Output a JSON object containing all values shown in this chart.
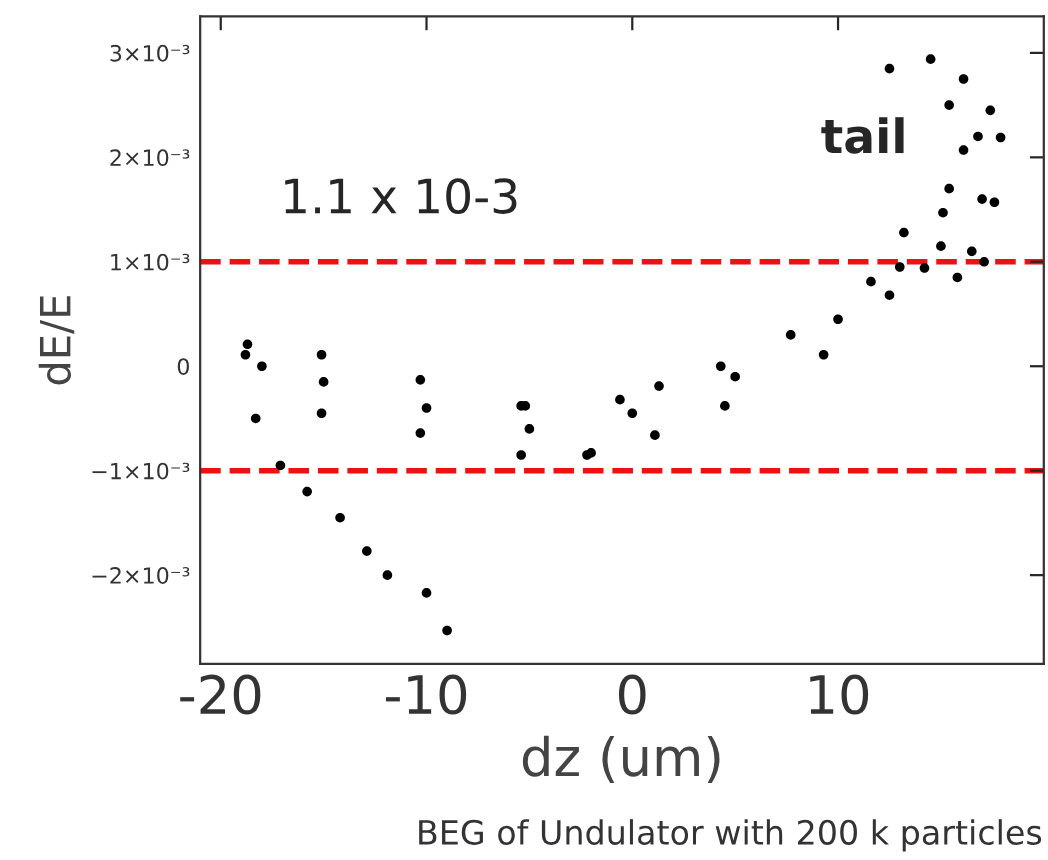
{
  "chart_data": {
    "type": "scatter",
    "xlabel": "dz (um)",
    "ylabel": "dE/E",
    "annotations": [
      "1.1 x 10-3",
      "tail",
      "BEG of Undulator with 200 k particles"
    ],
    "x": [
      -18.7,
      -15.1,
      -10.3,
      -5.4,
      -0.6,
      4.3,
      -15.1,
      -10.3,
      -5.4,
      -2.2,
      1.1,
      -18.8,
      -18.3,
      -17.1,
      -15.8,
      -14.2,
      -12.9,
      -11.9,
      -10.0,
      -9.0,
      -5.2,
      1.3,
      7.7,
      11.6,
      13.2,
      15.1,
      -2.0,
      4.5,
      9.3,
      12.5,
      14.2,
      15.8,
      17.1,
      17.6,
      17.9,
      17.4,
      16.1,
      14.5,
      12.5,
      15.4,
      16.1,
      15.4,
      -18.0,
      -15.0,
      -10.0,
      -5.0,
      0.0,
      5.0,
      10.0,
      13.0,
      15.0,
      16.5,
      17.0,
      16.8
    ],
    "series": [
      {
        "color": "#000000",
        "values": [
          0.00021,
          0.00011,
          -0.00013,
          -0.00038,
          -0.00032,
          0.0,
          -0.00045,
          -0.00064,
          -0.00085,
          -0.00085,
          -0.00066,
          0.00011,
          -0.0005,
          -0.00095,
          -0.0012,
          -0.00145,
          -0.00177,
          -0.002,
          -0.00217,
          -0.00253,
          -0.00038,
          -0.00019,
          0.0003,
          0.00081,
          0.00128,
          0.00147,
          -0.00083,
          -0.00038,
          0.00011,
          0.00068,
          0.00094,
          0.00085,
          0.001,
          0.00157,
          0.00219,
          0.00245,
          0.00275,
          0.00294,
          0.00285,
          0.0017,
          0.00207,
          0.0025,
          0.0,
          -0.00015,
          -0.0004,
          -0.0006,
          -0.00045,
          -0.0001,
          0.00045,
          0.00095,
          0.00115,
          0.0011,
          0.0016,
          0.0022
        ]
      }
    ],
    "xlim": [
      -21,
      20
    ],
    "xticks": [
      -20,
      -10,
      0,
      10
    ],
    "ylim": [
      -0.00285,
      0.00335
    ],
    "yticks": [
      {
        "value": -0.002,
        "label": "−2×10⁻³"
      },
      {
        "value": -0.001,
        "label": "−1×10⁻³"
      },
      0,
      {
        "value": 0.001,
        "label": "1×10⁻³"
      },
      {
        "value": 0.002,
        "label": "2×10⁻³"
      },
      {
        "value": 0.003,
        "label": "3×10⁻³"
      }
    ],
    "ref_lines": [
      {
        "axis": "y",
        "value": 0.001,
        "color": "#ee1111",
        "line_style": "dashed"
      },
      {
        "axis": "y",
        "value": -0.001,
        "color": "#ee1111",
        "line_style": "dashed"
      }
    ],
    "marker": "circle",
    "grid": false,
    "legend": false
  }
}
